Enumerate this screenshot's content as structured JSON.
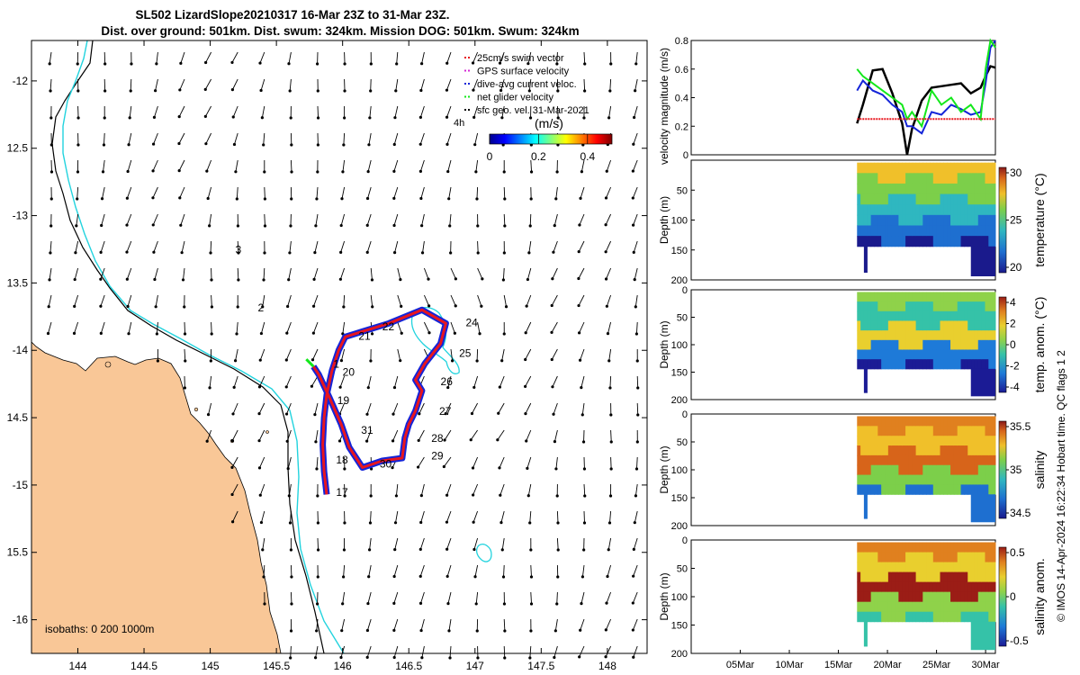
{
  "title": {
    "line1": "SL502 LizardSlope20210317 16-Mar 23Z to 31-Mar 23Z.",
    "line2": "Dist. over ground: 501km. Dist. swum: 324km. Mission DOG: 501km. Swum: 324km"
  },
  "colors": {
    "land": "#f9c797",
    "isobath_200": "#000000",
    "isobath_1000": "#22d3de",
    "track_red": "#e8161e",
    "track_blue": "#1424d8",
    "velocity_green": "#13e81b",
    "velocity_black": "#000000",
    "swim_red": "#e8161e"
  },
  "chart_data": [
    {
      "type": "map",
      "name": "glider-track-map",
      "xlabel": "",
      "ylabel": "",
      "xlim": [
        143.65,
        148.3
      ],
      "ylim": [
        -16.25,
        -11.7
      ],
      "xticks": [
        144,
        144.5,
        145,
        145.5,
        146,
        146.5,
        147,
        147.5,
        148
      ],
      "xtick_labels": [
        "144",
        "144.5",
        "145",
        "145.5",
        "146",
        "146.5",
        "147",
        "147.5",
        "148"
      ],
      "yticks": [
        -12,
        -12.5,
        -13,
        -13.5,
        -14,
        -14.5,
        -15,
        -15.5,
        -16
      ],
      "ytick_labels": [
        "-12",
        "12.5",
        "-13",
        "13.5",
        "-14",
        "14.5",
        "-15",
        "15.5",
        "-16"
      ],
      "legend": {
        "placement": "top-right",
        "entries": [
          {
            "label": "25cm/s swim vector",
            "color": "#e8161e"
          },
          {
            "label": "GPS surface velocity",
            "color": "#d42ad4"
          },
          {
            "label": "dive-avg current veloc.",
            "color": "#1424d8"
          },
          {
            "label": "net glider velocity",
            "color": "#13e81b"
          },
          {
            "label": "sfc geo. vel. 31-Mar-2021",
            "color": "#000000"
          }
        ]
      },
      "colorbar": {
        "label": "(m/s)",
        "ticks": [
          "0",
          "0.2",
          "0.4"
        ],
        "range": [
          0,
          0.5
        ],
        "note_label": "4h"
      },
      "isobaths_label": "isobaths: 0   200  1000m",
      "day_labels": [
        {
          "text": "17",
          "lon": 145.95,
          "lat": -15.08
        },
        {
          "text": "18",
          "lon": 145.95,
          "lat": -14.84
        },
        {
          "text": "19",
          "lon": 145.96,
          "lat": -14.4
        },
        {
          "text": "20",
          "lon": 146.0,
          "lat": -14.19
        },
        {
          "text": "21",
          "lon": 146.12,
          "lat": -13.92
        },
        {
          "text": "22",
          "lon": 146.3,
          "lat": -13.85
        },
        {
          "text": "24",
          "lon": 146.93,
          "lat": -13.82
        },
        {
          "text": "25",
          "lon": 146.88,
          "lat": -14.05
        },
        {
          "text": "26",
          "lon": 146.74,
          "lat": -14.26
        },
        {
          "text": "27",
          "lon": 146.73,
          "lat": -14.48
        },
        {
          "text": "28",
          "lon": 146.67,
          "lat": -14.68
        },
        {
          "text": "29",
          "lon": 146.67,
          "lat": -14.81
        },
        {
          "text": "30",
          "lon": 146.28,
          "lat": -14.87
        },
        {
          "text": "31",
          "lon": 146.14,
          "lat": -14.62
        },
        {
          "text": "1",
          "lon": 145.93,
          "lat": -14.13
        },
        {
          "text": "2",
          "lon": 145.36,
          "lat": -13.71
        },
        {
          "text": "3",
          "lon": 145.19,
          "lat": -13.28
        }
      ],
      "track_lonlat": [
        [
          145.88,
          -15.07
        ],
        [
          145.86,
          -14.9
        ],
        [
          145.85,
          -14.7
        ],
        [
          145.86,
          -14.5
        ],
        [
          145.88,
          -14.33
        ],
        [
          145.92,
          -14.15
        ],
        [
          145.97,
          -14.0
        ],
        [
          146.02,
          -13.9
        ],
        [
          146.15,
          -13.86
        ],
        [
          146.35,
          -13.8
        ],
        [
          146.6,
          -13.7
        ],
        [
          146.78,
          -13.8
        ],
        [
          146.74,
          -13.95
        ],
        [
          146.62,
          -14.1
        ],
        [
          146.55,
          -14.22
        ],
        [
          146.6,
          -14.3
        ],
        [
          146.55,
          -14.45
        ],
        [
          146.5,
          -14.55
        ],
        [
          146.47,
          -14.65
        ],
        [
          146.45,
          -14.8
        ],
        [
          146.3,
          -14.82
        ],
        [
          146.15,
          -14.87
        ],
        [
          146.05,
          -14.72
        ],
        [
          145.99,
          -14.55
        ],
        [
          145.9,
          -14.35
        ],
        [
          145.82,
          -14.18
        ],
        [
          145.78,
          -14.12
        ]
      ]
    },
    {
      "type": "line",
      "name": "velocity-magnitude-panel",
      "ylabel": "velocity magnitude (m/s)",
      "ylim": [
        0,
        0.8
      ],
      "yticks": [
        "0",
        "0.2",
        "0.4",
        "0.6",
        "0.8"
      ],
      "x_range_days": [
        0,
        30
      ],
      "x_days": [
        16.9,
        17.5,
        18.5,
        19.5,
        20.5,
        21.5,
        22.0,
        22.5,
        23.5,
        24.5,
        25.5,
        26.5,
        27.5,
        28.5,
        29.5,
        30.0,
        30.5,
        31.0
      ],
      "series": [
        {
          "values": [
            0.22,
            0.35,
            0.59,
            0.6,
            0.43,
            0.22,
            0.0,
            0.18,
            0.38,
            0.47,
            0.48,
            0.49,
            0.5,
            0.43,
            0.47,
            0.55,
            0.62,
            0.61
          ],
          "color": "#000000"
        },
        {
          "values": [
            0.45,
            0.52,
            0.45,
            0.42,
            0.35,
            0.3,
            0.2,
            0.2,
            0.15,
            0.3,
            0.28,
            0.35,
            0.32,
            0.28,
            0.3,
            0.5,
            0.75,
            0.8
          ],
          "color": "#1424d8"
        },
        {
          "values": [
            0.6,
            0.55,
            0.5,
            0.45,
            0.4,
            0.35,
            0.25,
            0.3,
            0.2,
            0.45,
            0.35,
            0.4,
            0.3,
            0.35,
            0.25,
            0.6,
            0.8,
            0.75
          ],
          "color": "#13e81b"
        },
        {
          "values": [
            0.25,
            0.25,
            0.25,
            0.25,
            0.25,
            0.25,
            0.25,
            0.25,
            0.25,
            0.25,
            0.25,
            0.25,
            0.25,
            0.25,
            0.25,
            0.25,
            0.25,
            0.25
          ],
          "color": "#e8161e"
        }
      ]
    },
    {
      "type": "heatmap",
      "name": "temperature-panel",
      "ylabel": "Depth (m)",
      "yticks": [
        "50",
        "100",
        "150",
        "200"
      ],
      "colorbar_label": "temperature (°C)",
      "colorbar_ticks": [
        "30",
        "25",
        "20"
      ],
      "colorbar_range": [
        18,
        31
      ]
    },
    {
      "type": "heatmap",
      "name": "temperature-anomaly-panel",
      "ylabel": "Depth (m)",
      "yticks": [
        "0",
        "50",
        "100",
        "150",
        "200"
      ],
      "colorbar_label": "temp. anom. (°C)",
      "colorbar_ticks": [
        "4",
        "2",
        "0",
        "-2",
        "-4"
      ],
      "colorbar_range": [
        -4,
        4
      ]
    },
    {
      "type": "heatmap",
      "name": "salinity-panel",
      "ylabel": "Depth (m)",
      "yticks": [
        "0",
        "50",
        "100",
        "150",
        "200"
      ],
      "colorbar_label": "salinity",
      "colorbar_ticks": [
        "35.5",
        "35",
        "34.5"
      ],
      "colorbar_range": [
        34.3,
        35.9
      ]
    },
    {
      "type": "heatmap",
      "name": "salinity-anomaly-panel",
      "ylabel": "Depth (m)",
      "yticks": [
        "0",
        "50",
        "100",
        "150",
        "200"
      ],
      "xticks": [
        "05Mar",
        "10Mar",
        "15Mar",
        "20Mar",
        "25Mar",
        "30Mar"
      ],
      "colorbar_label": "salinity anom.",
      "colorbar_ticks": [
        "0.5",
        "0",
        "-0.5"
      ],
      "colorbar_range": [
        -0.5,
        0.5
      ]
    }
  ],
  "credit": "© IMOS 14-Apr-2024 16:22:34 Hobart time. QC flags 1  2"
}
